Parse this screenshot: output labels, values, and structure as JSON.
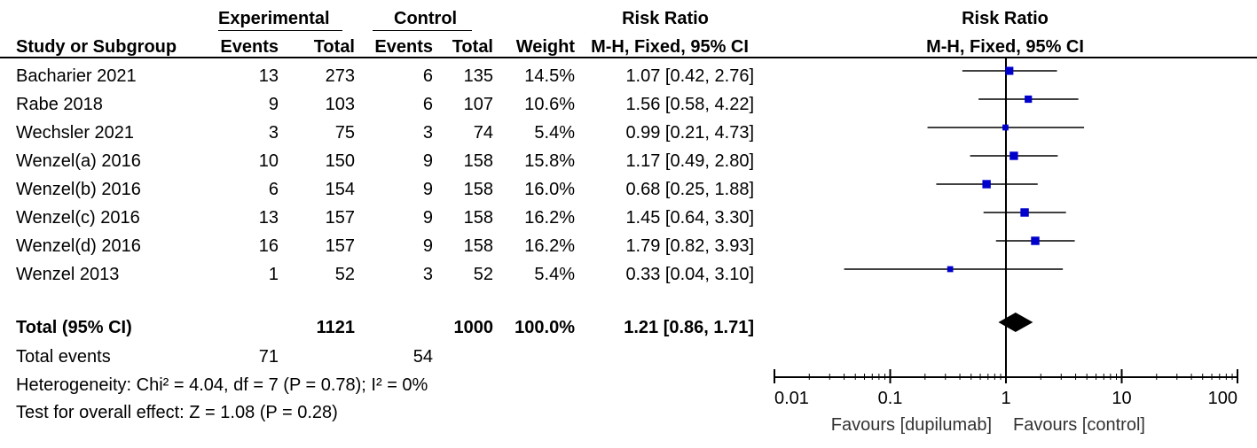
{
  "headers": {
    "experimental": "Experimental",
    "control": "Control",
    "risk_ratio_col": "Risk Ratio",
    "risk_ratio_plot": "Risk Ratio",
    "study_or_subgroup": "Study or Subgroup",
    "events_exp": "Events",
    "total_exp": "Total",
    "events_ctl": "Events",
    "total_ctl": "Total",
    "weight": "Weight",
    "method_col": "M-H, Fixed, 95% CI",
    "method_plot": "M-H, Fixed, 95% CI"
  },
  "studies": [
    {
      "name": "Bacharier 2021",
      "exp_events": "13",
      "exp_total": "273",
      "ctl_events": "6",
      "ctl_total": "135",
      "weight": "14.5%",
      "ci_text": "1.07 [0.42, 2.76]"
    },
    {
      "name": "Rabe 2018",
      "exp_events": "9",
      "exp_total": "103",
      "ctl_events": "6",
      "ctl_total": "107",
      "weight": "10.6%",
      "ci_text": "1.56 [0.58, 4.22]"
    },
    {
      "name": "Wechsler 2021",
      "exp_events": "3",
      "exp_total": "75",
      "ctl_events": "3",
      "ctl_total": "74",
      "weight": "5.4%",
      "ci_text": "0.99 [0.21, 4.73]"
    },
    {
      "name": "Wenzel(a) 2016",
      "exp_events": "10",
      "exp_total": "150",
      "ctl_events": "9",
      "ctl_total": "158",
      "weight": "15.8%",
      "ci_text": "1.17 [0.49, 2.80]"
    },
    {
      "name": "Wenzel(b) 2016",
      "exp_events": "6",
      "exp_total": "154",
      "ctl_events": "9",
      "ctl_total": "158",
      "weight": "16.0%",
      "ci_text": "0.68 [0.25, 1.88]"
    },
    {
      "name": "Wenzel(c) 2016",
      "exp_events": "13",
      "exp_total": "157",
      "ctl_events": "9",
      "ctl_total": "158",
      "weight": "16.2%",
      "ci_text": "1.45 [0.64, 3.30]"
    },
    {
      "name": "Wenzel(d) 2016",
      "exp_events": "16",
      "exp_total": "157",
      "ctl_events": "9",
      "ctl_total": "158",
      "weight": "16.2%",
      "ci_text": "1.79 [0.82, 3.93]"
    },
    {
      "name": "Wenzel 2013",
      "exp_events": "1",
      "exp_total": "52",
      "ctl_events": "3",
      "ctl_total": "52",
      "weight": "5.4%",
      "ci_text": "0.33 [0.04, 3.10]"
    }
  ],
  "total": {
    "label": "Total (95% CI)",
    "exp_total": "1121",
    "ctl_total": "1000",
    "weight": "100.0%",
    "ci_text": "1.21 [0.86, 1.71]"
  },
  "total_events": {
    "label": "Total events",
    "exp": "71",
    "ctl": "54"
  },
  "heterogeneity": "Heterogeneity: Chi² = 4.04, df = 7 (P = 0.78); I² = 0%",
  "overall_effect": "Test for overall effect: Z = 1.08 (P = 0.28)",
  "chart_data": {
    "type": "forest",
    "scale": "log",
    "xlim": [
      0.01,
      100
    ],
    "ticks": [
      0.01,
      0.1,
      1,
      10,
      100
    ],
    "tick_labels": [
      "0.01",
      "0.1",
      "1",
      "10",
      "100"
    ],
    "reference_line": 1,
    "favours_left": "Favours [dupilumab]",
    "favours_right": "Favours [control]",
    "marker_color": "#0000cc",
    "studies": [
      {
        "name": "Bacharier 2021",
        "rr": 1.07,
        "lo": 0.42,
        "hi": 2.76,
        "weight": 14.5
      },
      {
        "name": "Rabe 2018",
        "rr": 1.56,
        "lo": 0.58,
        "hi": 4.22,
        "weight": 10.6
      },
      {
        "name": "Wechsler 2021",
        "rr": 0.99,
        "lo": 0.21,
        "hi": 4.73,
        "weight": 5.4
      },
      {
        "name": "Wenzel(a) 2016",
        "rr": 1.17,
        "lo": 0.49,
        "hi": 2.8,
        "weight": 15.8
      },
      {
        "name": "Wenzel(b) 2016",
        "rr": 0.68,
        "lo": 0.25,
        "hi": 1.88,
        "weight": 16.0
      },
      {
        "name": "Wenzel(c) 2016",
        "rr": 1.45,
        "lo": 0.64,
        "hi": 3.3,
        "weight": 16.2
      },
      {
        "name": "Wenzel(d) 2016",
        "rr": 1.79,
        "lo": 0.82,
        "hi": 3.93,
        "weight": 16.2
      },
      {
        "name": "Wenzel 2013",
        "rr": 0.33,
        "lo": 0.04,
        "hi": 3.1,
        "weight": 5.4
      }
    ],
    "pooled": {
      "rr": 1.21,
      "lo": 0.86,
      "hi": 1.71
    }
  }
}
